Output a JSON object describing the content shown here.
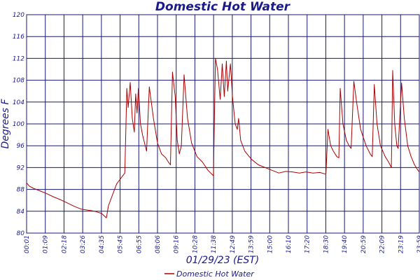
{
  "chart_data": {
    "type": "line",
    "title": "Domestic Hot Water",
    "xlabel": "01/29/23 (EST)",
    "ylabel": "Degrees F",
    "ylim": [
      80,
      120
    ],
    "yticks": [
      "80",
      "84",
      "88",
      "92",
      "96",
      "100",
      "104",
      "108",
      "112",
      "116",
      "120"
    ],
    "xticks": [
      "00:01",
      "01:09",
      "02:18",
      "03:26",
      "04:35",
      "05:45",
      "06:55",
      "08:06",
      "09:16",
      "10:28",
      "11:38",
      "12:49",
      "13:59",
      "15:00",
      "16:10",
      "17:20",
      "18:30",
      "19:40",
      "20:59",
      "22:09",
      "23:19",
      "23:59"
    ],
    "grid": true,
    "legend_position": "bottom",
    "series": [
      {
        "name": "Domestic Hot Water",
        "color": "#aa0000",
        "points": [
          [
            0.0,
            89.2
          ],
          [
            0.2,
            88.6
          ],
          [
            0.5,
            88.2
          ],
          [
            1.0,
            87.7
          ],
          [
            1.5,
            87.2
          ],
          [
            2.0,
            86.6
          ],
          [
            2.5,
            86.1
          ],
          [
            3.0,
            85.5
          ],
          [
            3.5,
            84.9
          ],
          [
            4.0,
            84.4
          ],
          [
            4.5,
            84.2
          ],
          [
            5.0,
            84.0
          ],
          [
            5.5,
            83.6
          ],
          [
            5.85,
            82.8
          ],
          [
            6.0,
            85.0
          ],
          [
            6.3,
            87.0
          ],
          [
            6.6,
            89.0
          ],
          [
            6.9,
            90.0
          ],
          [
            7.2,
            91.0
          ],
          [
            7.35,
            106.5
          ],
          [
            7.45,
            103.0
          ],
          [
            7.6,
            107.6
          ],
          [
            7.75,
            101.0
          ],
          [
            7.9,
            98.5
          ],
          [
            8.0,
            105.5
          ],
          [
            8.1,
            102.0
          ],
          [
            8.2,
            106.5
          ],
          [
            8.35,
            100.0
          ],
          [
            8.5,
            98.0
          ],
          [
            8.6,
            97.0
          ],
          [
            8.8,
            95.0
          ],
          [
            9.0,
            106.8
          ],
          [
            9.3,
            101.0
          ],
          [
            9.6,
            96.5
          ],
          [
            9.9,
            94.5
          ],
          [
            10.2,
            93.8
          ],
          [
            10.4,
            93.0
          ],
          [
            10.55,
            92.5
          ],
          [
            10.7,
            109.5
          ],
          [
            10.9,
            105.0
          ],
          [
            11.05,
            97.0
          ],
          [
            11.2,
            94.5
          ],
          [
            11.35,
            96.0
          ],
          [
            11.55,
            109.0
          ],
          [
            11.8,
            101.0
          ],
          [
            12.1,
            96.5
          ],
          [
            12.5,
            94.0
          ],
          [
            12.9,
            93.0
          ],
          [
            13.3,
            91.5
          ],
          [
            13.5,
            91.0
          ],
          [
            13.7,
            90.5
          ],
          [
            13.85,
            112.0
          ],
          [
            14.0,
            110.0
          ],
          [
            14.2,
            104.5
          ],
          [
            14.35,
            111.0
          ],
          [
            14.5,
            105.0
          ],
          [
            14.65,
            111.5
          ],
          [
            14.75,
            106.0
          ],
          [
            14.95,
            111.0
          ],
          [
            15.1,
            105.0
          ],
          [
            15.3,
            100.0
          ],
          [
            15.45,
            99.0
          ],
          [
            15.55,
            101.0
          ],
          [
            15.7,
            97.0
          ],
          [
            16.0,
            95.0
          ],
          [
            16.5,
            93.5
          ],
          [
            17.0,
            92.5
          ],
          [
            17.5,
            92.0
          ],
          [
            18.0,
            91.5
          ],
          [
            18.5,
            91.0
          ],
          [
            19.0,
            91.3
          ],
          [
            19.5,
            91.2
          ],
          [
            20.0,
            91.0
          ],
          [
            20.5,
            91.2
          ],
          [
            21.0,
            91.0
          ],
          [
            21.5,
            91.1
          ],
          [
            21.95,
            90.8
          ],
          [
            22.1,
            99.0
          ],
          [
            22.3,
            96.0
          ],
          [
            22.5,
            95.0
          ],
          [
            22.75,
            94.0
          ],
          [
            22.9,
            93.8
          ],
          [
            23.0,
            106.5
          ],
          [
            23.2,
            100.0
          ],
          [
            23.45,
            97.0
          ],
          [
            23.65,
            96.0
          ],
          [
            23.8,
            95.5
          ],
          [
            24.0,
            107.8
          ],
          [
            24.2,
            104.0
          ],
          [
            24.5,
            99.0
          ],
          [
            24.9,
            96.0
          ],
          [
            25.2,
            94.5
          ],
          [
            25.35,
            94.0
          ],
          [
            25.5,
            107.2
          ],
          [
            25.7,
            100.0
          ],
          [
            25.95,
            96.0
          ],
          [
            26.3,
            94.0
          ],
          [
            26.55,
            93.0
          ],
          [
            26.75,
            92.0
          ],
          [
            26.85,
            109.8
          ],
          [
            27.0,
            100.0
          ],
          [
            27.15,
            96.0
          ],
          [
            27.25,
            95.5
          ],
          [
            27.5,
            107.5
          ],
          [
            27.7,
            101.0
          ],
          [
            27.95,
            96.0
          ],
          [
            28.2,
            94.0
          ],
          [
            28.45,
            92.5
          ],
          [
            28.7,
            91.5
          ],
          [
            28.8,
            91.2
          ]
        ]
      }
    ]
  }
}
